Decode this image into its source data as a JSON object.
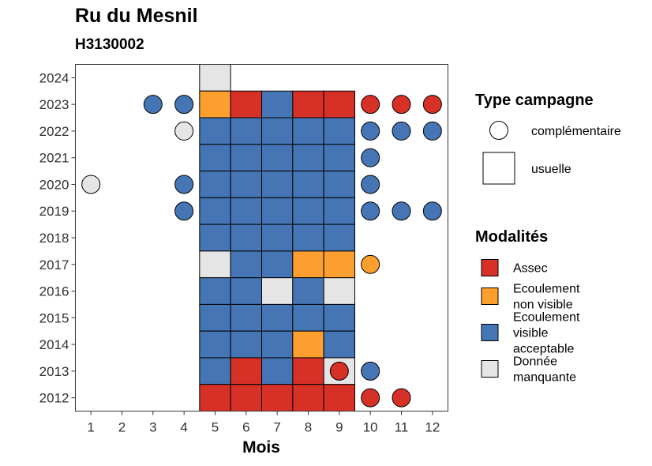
{
  "chart_data": {
    "type": "heatmap",
    "title": "Ru du Mesnil",
    "subtitle": "H3130002",
    "xlabel": "Mois",
    "ylabel": "",
    "x_ticks": [
      1,
      2,
      3,
      4,
      5,
      6,
      7,
      8,
      9,
      10,
      11,
      12
    ],
    "y_ticks": [
      2012,
      2013,
      2014,
      2015,
      2016,
      2017,
      2018,
      2019,
      2020,
      2021,
      2022,
      2023,
      2024
    ],
    "xlim": [
      0.5,
      12.5
    ],
    "ylim": [
      2011.5,
      2024.5
    ],
    "colors": {
      "Assec": "#d73027",
      "Ecoulement non visible": "#fd9f2e",
      "Ecoulement visible acceptable": "#4575b4",
      "Donnée manquante": "#e5e5e5"
    },
    "legend_type": {
      "title": "Type campagne",
      "items": [
        {
          "key": "complementaire",
          "label": "complémentaire"
        },
        {
          "key": "usuelle",
          "label": "usuelle"
        }
      ]
    },
    "legend_modalites": {
      "title": "Modalités",
      "items": [
        {
          "key": "Assec",
          "lines": [
            "Assec"
          ]
        },
        {
          "key": "Ecoulement non visible",
          "lines": [
            "Ecoulement",
            "non visible"
          ]
        },
        {
          "key": "Ecoulement visible acceptable",
          "lines": [
            "Ecoulement",
            "visible",
            "acceptable"
          ]
        },
        {
          "key": "Donnée manquante",
          "lines": [
            "Donnée",
            "manquante"
          ]
        }
      ]
    },
    "points": [
      {
        "year": 2024,
        "month": 5,
        "type": "usuelle",
        "modalite": "Donnée manquante"
      },
      {
        "year": 2023,
        "month": 3,
        "type": "complementaire",
        "modalite": "Ecoulement visible acceptable"
      },
      {
        "year": 2023,
        "month": 4,
        "type": "complementaire",
        "modalite": "Ecoulement visible acceptable"
      },
      {
        "year": 2023,
        "month": 5,
        "type": "usuelle",
        "modalite": "Ecoulement non visible"
      },
      {
        "year": 2023,
        "month": 6,
        "type": "usuelle",
        "modalite": "Assec"
      },
      {
        "year": 2023,
        "month": 7,
        "type": "usuelle",
        "modalite": "Ecoulement visible acceptable"
      },
      {
        "year": 2023,
        "month": 8,
        "type": "usuelle",
        "modalite": "Assec"
      },
      {
        "year": 2023,
        "month": 9,
        "type": "usuelle",
        "modalite": "Assec"
      },
      {
        "year": 2023,
        "month": 10,
        "type": "complementaire",
        "modalite": "Assec"
      },
      {
        "year": 2023,
        "month": 11,
        "type": "complementaire",
        "modalite": "Assec"
      },
      {
        "year": 2023,
        "month": 12,
        "type": "complementaire",
        "modalite": "Assec"
      },
      {
        "year": 2022,
        "month": 4,
        "type": "complementaire",
        "modalite": "Donnée manquante"
      },
      {
        "year": 2022,
        "month": 5,
        "type": "usuelle",
        "modalite": "Ecoulement visible acceptable"
      },
      {
        "year": 2022,
        "month": 6,
        "type": "usuelle",
        "modalite": "Ecoulement visible acceptable"
      },
      {
        "year": 2022,
        "month": 7,
        "type": "usuelle",
        "modalite": "Ecoulement visible acceptable"
      },
      {
        "year": 2022,
        "month": 8,
        "type": "usuelle",
        "modalite": "Ecoulement visible acceptable"
      },
      {
        "year": 2022,
        "month": 9,
        "type": "usuelle",
        "modalite": "Ecoulement visible acceptable"
      },
      {
        "year": 2022,
        "month": 10,
        "type": "complementaire",
        "modalite": "Ecoulement visible acceptable"
      },
      {
        "year": 2022,
        "month": 11,
        "type": "complementaire",
        "modalite": "Ecoulement visible acceptable"
      },
      {
        "year": 2022,
        "month": 12,
        "type": "complementaire",
        "modalite": "Ecoulement visible acceptable"
      },
      {
        "year": 2021,
        "month": 5,
        "type": "usuelle",
        "modalite": "Ecoulement visible acceptable"
      },
      {
        "year": 2021,
        "month": 6,
        "type": "usuelle",
        "modalite": "Ecoulement visible acceptable"
      },
      {
        "year": 2021,
        "month": 7,
        "type": "usuelle",
        "modalite": "Ecoulement visible acceptable"
      },
      {
        "year": 2021,
        "month": 8,
        "type": "usuelle",
        "modalite": "Ecoulement visible acceptable"
      },
      {
        "year": 2021,
        "month": 9,
        "type": "usuelle",
        "modalite": "Ecoulement visible acceptable"
      },
      {
        "year": 2021,
        "month": 10,
        "type": "complementaire",
        "modalite": "Ecoulement visible acceptable"
      },
      {
        "year": 2020,
        "month": 1,
        "type": "complementaire",
        "modalite": "Donnée manquante"
      },
      {
        "year": 2020,
        "month": 4,
        "type": "complementaire",
        "modalite": "Ecoulement visible acceptable"
      },
      {
        "year": 2020,
        "month": 5,
        "type": "usuelle",
        "modalite": "Ecoulement visible acceptable"
      },
      {
        "year": 2020,
        "month": 6,
        "type": "usuelle",
        "modalite": "Ecoulement visible acceptable"
      },
      {
        "year": 2020,
        "month": 7,
        "type": "usuelle",
        "modalite": "Ecoulement visible acceptable"
      },
      {
        "year": 2020,
        "month": 8,
        "type": "usuelle",
        "modalite": "Ecoulement visible acceptable"
      },
      {
        "year": 2020,
        "month": 9,
        "type": "usuelle",
        "modalite": "Ecoulement visible acceptable"
      },
      {
        "year": 2020,
        "month": 10,
        "type": "complementaire",
        "modalite": "Ecoulement visible acceptable"
      },
      {
        "year": 2019,
        "month": 4,
        "type": "complementaire",
        "modalite": "Ecoulement visible acceptable"
      },
      {
        "year": 2019,
        "month": 5,
        "type": "usuelle",
        "modalite": "Ecoulement visible acceptable"
      },
      {
        "year": 2019,
        "month": 6,
        "type": "usuelle",
        "modalite": "Ecoulement visible acceptable"
      },
      {
        "year": 2019,
        "month": 7,
        "type": "usuelle",
        "modalite": "Ecoulement visible acceptable"
      },
      {
        "year": 2019,
        "month": 8,
        "type": "usuelle",
        "modalite": "Ecoulement visible acceptable"
      },
      {
        "year": 2019,
        "month": 9,
        "type": "usuelle",
        "modalite": "Ecoulement visible acceptable"
      },
      {
        "year": 2019,
        "month": 10,
        "type": "complementaire",
        "modalite": "Ecoulement visible acceptable"
      },
      {
        "year": 2019,
        "month": 11,
        "type": "complementaire",
        "modalite": "Ecoulement visible acceptable"
      },
      {
        "year": 2019,
        "month": 12,
        "type": "complementaire",
        "modalite": "Ecoulement visible acceptable"
      },
      {
        "year": 2018,
        "month": 5,
        "type": "usuelle",
        "modalite": "Ecoulement visible acceptable"
      },
      {
        "year": 2018,
        "month": 6,
        "type": "usuelle",
        "modalite": "Ecoulement visible acceptable"
      },
      {
        "year": 2018,
        "month": 7,
        "type": "usuelle",
        "modalite": "Ecoulement visible acceptable"
      },
      {
        "year": 2018,
        "month": 8,
        "type": "usuelle",
        "modalite": "Ecoulement visible acceptable"
      },
      {
        "year": 2018,
        "month": 9,
        "type": "usuelle",
        "modalite": "Ecoulement visible acceptable"
      },
      {
        "year": 2017,
        "month": 5,
        "type": "usuelle",
        "modalite": "Donnée manquante"
      },
      {
        "year": 2017,
        "month": 6,
        "type": "usuelle",
        "modalite": "Ecoulement visible acceptable"
      },
      {
        "year": 2017,
        "month": 7,
        "type": "usuelle",
        "modalite": "Ecoulement visible acceptable"
      },
      {
        "year": 2017,
        "month": 8,
        "type": "usuelle",
        "modalite": "Ecoulement non visible"
      },
      {
        "year": 2017,
        "month": 9,
        "type": "usuelle",
        "modalite": "Ecoulement non visible"
      },
      {
        "year": 2017,
        "month": 10,
        "type": "complementaire",
        "modalite": "Ecoulement non visible"
      },
      {
        "year": 2016,
        "month": 5,
        "type": "usuelle",
        "modalite": "Ecoulement visible acceptable"
      },
      {
        "year": 2016,
        "month": 6,
        "type": "usuelle",
        "modalite": "Ecoulement visible acceptable"
      },
      {
        "year": 2016,
        "month": 7,
        "type": "usuelle",
        "modalite": "Donnée manquante"
      },
      {
        "year": 2016,
        "month": 8,
        "type": "usuelle",
        "modalite": "Ecoulement visible acceptable"
      },
      {
        "year": 2016,
        "month": 9,
        "type": "usuelle",
        "modalite": "Donnée manquante"
      },
      {
        "year": 2015,
        "month": 5,
        "type": "usuelle",
        "modalite": "Ecoulement visible acceptable"
      },
      {
        "year": 2015,
        "month": 6,
        "type": "usuelle",
        "modalite": "Ecoulement visible acceptable"
      },
      {
        "year": 2015,
        "month": 7,
        "type": "usuelle",
        "modalite": "Ecoulement visible acceptable"
      },
      {
        "year": 2015,
        "month": 8,
        "type": "usuelle",
        "modalite": "Ecoulement visible acceptable"
      },
      {
        "year": 2015,
        "month": 9,
        "type": "usuelle",
        "modalite": "Ecoulement visible acceptable"
      },
      {
        "year": 2014,
        "month": 5,
        "type": "usuelle",
        "modalite": "Ecoulement visible acceptable"
      },
      {
        "year": 2014,
        "month": 6,
        "type": "usuelle",
        "modalite": "Ecoulement visible acceptable"
      },
      {
        "year": 2014,
        "month": 7,
        "type": "usuelle",
        "modalite": "Ecoulement visible acceptable"
      },
      {
        "year": 2014,
        "month": 8,
        "type": "usuelle",
        "modalite": "Ecoulement non visible"
      },
      {
        "year": 2014,
        "month": 9,
        "type": "usuelle",
        "modalite": "Ecoulement visible acceptable"
      },
      {
        "year": 2013,
        "month": 5,
        "type": "usuelle",
        "modalite": "Ecoulement visible acceptable"
      },
      {
        "year": 2013,
        "month": 6,
        "type": "usuelle",
        "modalite": "Assec"
      },
      {
        "year": 2013,
        "month": 7,
        "type": "usuelle",
        "modalite": "Ecoulement visible acceptable"
      },
      {
        "year": 2013,
        "month": 8,
        "type": "usuelle",
        "modalite": "Assec"
      },
      {
        "year": 2013,
        "month": 9,
        "type": "usuelle",
        "modalite": "Donnée manquante"
      },
      {
        "year": 2013,
        "month": 9,
        "type": "complementaire",
        "modalite": "Assec"
      },
      {
        "year": 2013,
        "month": 10,
        "type": "complementaire",
        "modalite": "Ecoulement visible acceptable"
      },
      {
        "year": 2012,
        "month": 5,
        "type": "usuelle",
        "modalite": "Assec"
      },
      {
        "year": 2012,
        "month": 6,
        "type": "usuelle",
        "modalite": "Assec"
      },
      {
        "year": 2012,
        "month": 7,
        "type": "usuelle",
        "modalite": "Assec"
      },
      {
        "year": 2012,
        "month": 8,
        "type": "usuelle",
        "modalite": "Assec"
      },
      {
        "year": 2012,
        "month": 9,
        "type": "usuelle",
        "modalite": "Assec"
      },
      {
        "year": 2012,
        "month": 10,
        "type": "complementaire",
        "modalite": "Assec"
      },
      {
        "year": 2012,
        "month": 11,
        "type": "complementaire",
        "modalite": "Assec"
      }
    ]
  }
}
